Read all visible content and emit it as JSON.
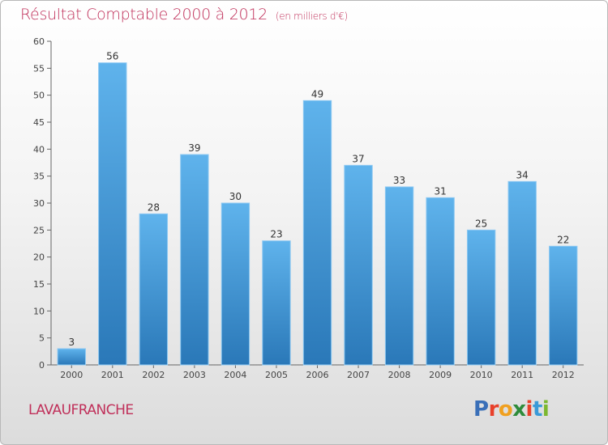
{
  "chart_data": {
    "type": "bar",
    "title": "Résultat Comptable 2000 à 2012",
    "subtitle": "(en milliers d'€)",
    "categories": [
      "2000",
      "2001",
      "2002",
      "2003",
      "2004",
      "2005",
      "2006",
      "2007",
      "2008",
      "2009",
      "2010",
      "2011",
      "2012"
    ],
    "values": [
      3,
      56,
      28,
      39,
      30,
      23,
      49,
      37,
      33,
      31,
      25,
      34,
      22
    ],
    "ylim": [
      0,
      60
    ],
    "yticks": [
      0,
      5,
      10,
      15,
      20,
      25,
      30,
      35,
      40,
      45,
      50,
      55,
      60
    ],
    "xlabel": "",
    "ylabel": "",
    "grid": false,
    "bar_color": "#4aa0e0",
    "bar_color_dark": "#2a78b8"
  },
  "footer": {
    "town": "LAVAUFRANCHE",
    "logo_letters": [
      "P",
      "r",
      "o",
      "x",
      "i",
      "t",
      "i"
    ],
    "logo_colors": [
      "#3a6fb8",
      "#e8402a",
      "#f0a020",
      "#2e8b3a",
      "#e8402a",
      "#3a9ad8",
      "#7cb82f"
    ]
  },
  "colors": {
    "title": "#c0305a",
    "axis": "#555555"
  }
}
